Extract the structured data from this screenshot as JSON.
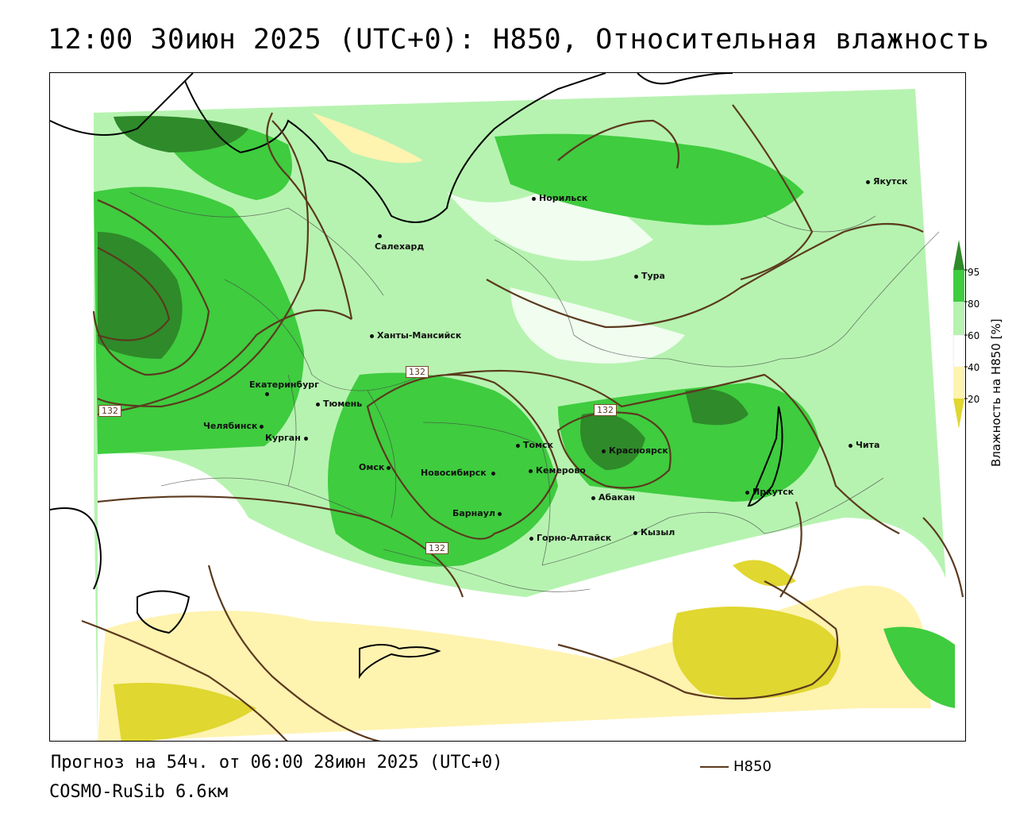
{
  "title": "12:00 30июн 2025 (UTC+0): H850, Относительная влажность",
  "footer": {
    "forecast": "Прогноз на 54ч. от 06:00 28июн 2025 (UTC+0)",
    "model": "COSMO-RuSib 6.6км"
  },
  "legend": {
    "line_label": "H850",
    "line_color": "#5b3a1e",
    "colorbar_title": "Влажность на H850 [%]",
    "ticks": [
      "95",
      "80",
      "60",
      "40",
      "20"
    ],
    "colors": {
      "gt95": "#2f8a2a",
      "80_95": "#3fcc3f",
      "60_80": "#b6f3b0",
      "40_60": "#ffffff",
      "20_40": "#fff3b0",
      "lt20": "#e0d730"
    }
  },
  "cities": [
    {
      "name": "Якутск"
    },
    {
      "name": "Норильск"
    },
    {
      "name": "Салехард"
    },
    {
      "name": "Тура"
    },
    {
      "name": "Ханты-Мансийск"
    },
    {
      "name": "Екатеринбург"
    },
    {
      "name": "Тюмень"
    },
    {
      "name": "Челябинск"
    },
    {
      "name": "Курган"
    },
    {
      "name": "Омск"
    },
    {
      "name": "Новосибирск"
    },
    {
      "name": "Томск"
    },
    {
      "name": "Кемерово"
    },
    {
      "name": "Красноярск"
    },
    {
      "name": "Барнаул"
    },
    {
      "name": "Абакан"
    },
    {
      "name": "Горно-Алтайск"
    },
    {
      "name": "Кызыл"
    },
    {
      "name": "Иркутск"
    },
    {
      "name": "Чита"
    }
  ],
  "isolines": [
    "132",
    "132",
    "132",
    "132"
  ]
}
